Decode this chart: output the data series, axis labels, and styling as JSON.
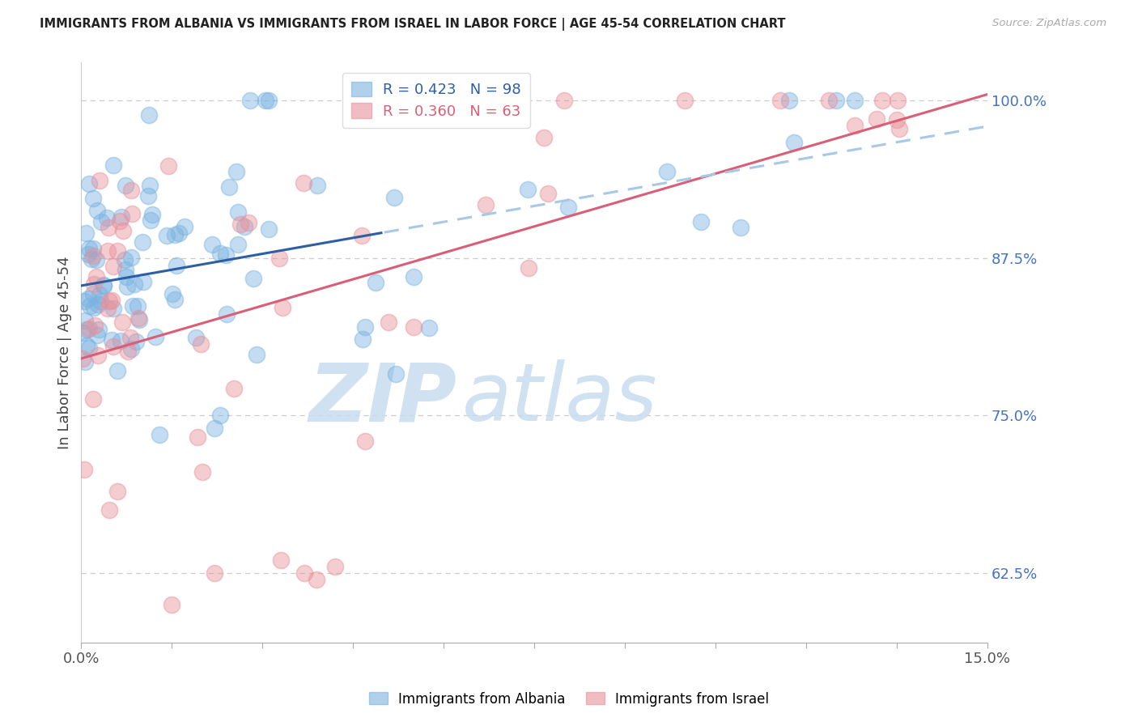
{
  "title": "IMMIGRANTS FROM ALBANIA VS IMMIGRANTS FROM ISRAEL IN LABOR FORCE | AGE 45-54 CORRELATION CHART",
  "source": "Source: ZipAtlas.com",
  "ylabel": "In Labor Force | Age 45-54",
  "right_ytick_values": [
    62.5,
    75.0,
    87.5,
    100.0
  ],
  "right_ytick_labels": [
    "62.5%",
    "75.0%",
    "87.5%",
    "100.0%"
  ],
  "xmin": 0.0,
  "xmax": 15.0,
  "ymin": 57.0,
  "ymax": 103.0,
  "albania_color": "#7ab3e0",
  "israel_color": "#e8909a",
  "albania_line_color": "#2e5fa3",
  "albania_dash_color": "#a8c8e8",
  "israel_line_color": "#d95f78",
  "albania_R": 0.423,
  "albania_N": 98,
  "israel_R": 0.36,
  "israel_N": 63,
  "legend_albania": "Immigrants from Albania",
  "legend_israel": "Immigrants from Israel",
  "legend_R_albania": "R = 0.423   N = 98",
  "legend_R_israel": "R = 0.360   N = 63",
  "grid_color": "#cccccc",
  "title_color": "#222222",
  "source_color": "#aaaaaa",
  "ytick_color": "#4472c4",
  "xtick_color": "#555555",
  "watermark_zip_color": "#c8ddf0",
  "watermark_atlas_color": "#c8ddf0"
}
